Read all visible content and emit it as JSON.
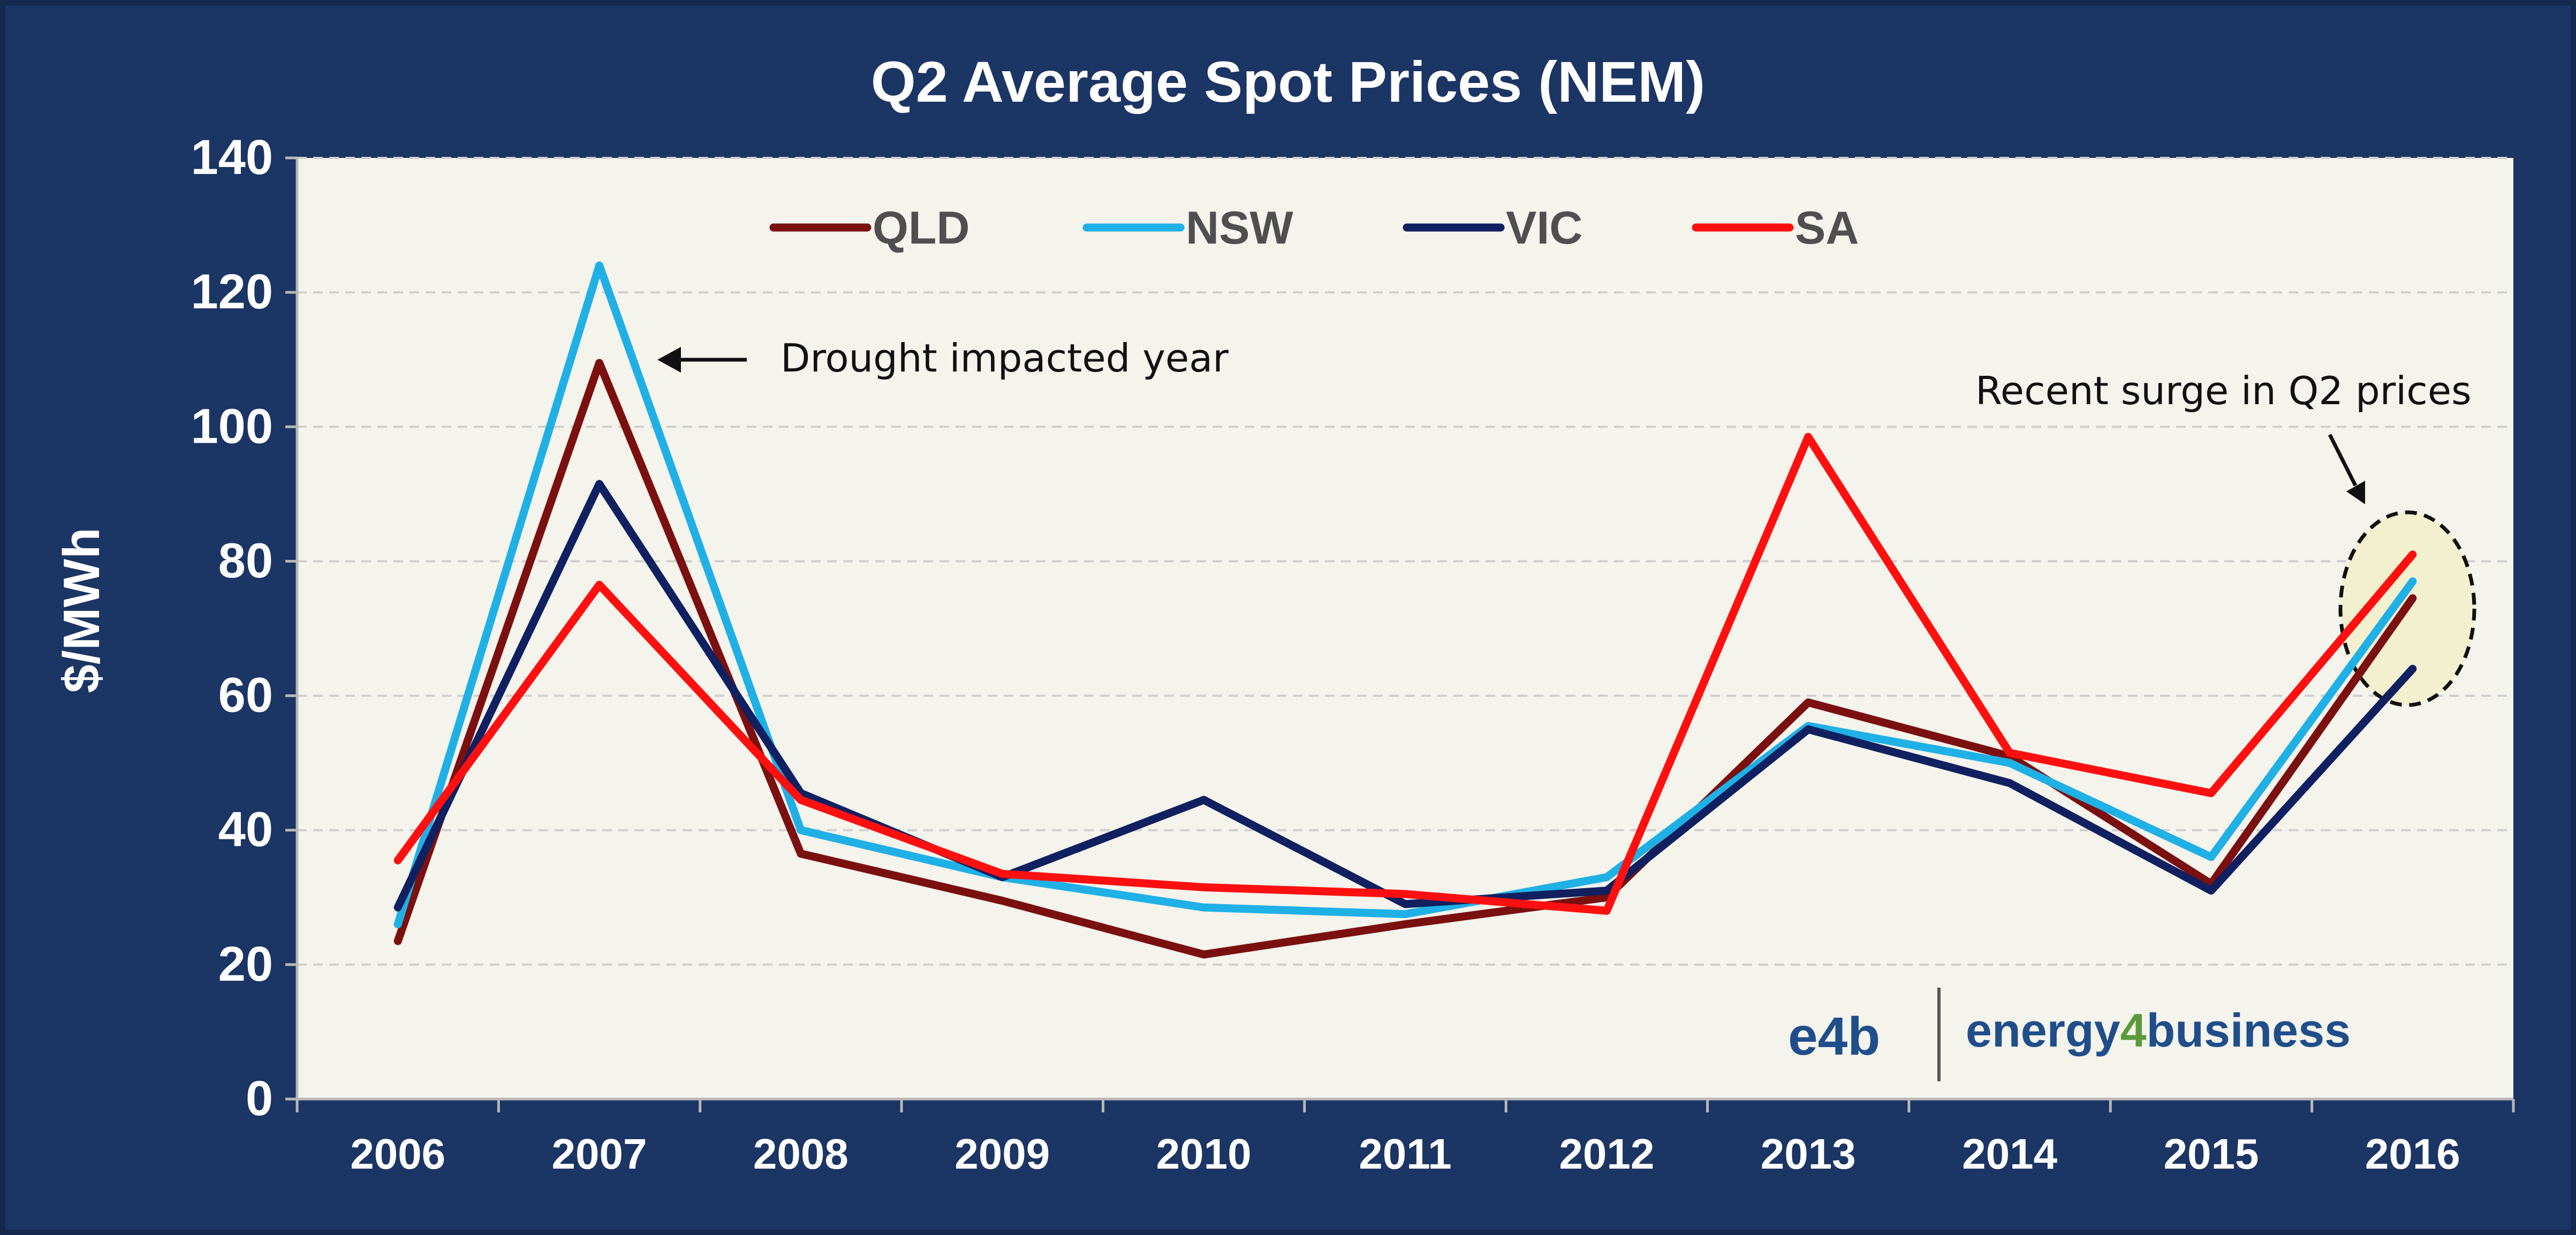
{
  "chart_data": {
    "type": "line",
    "title": "Q2 Average Spot Prices (NEM)",
    "xlabel": "",
    "ylabel": "$/MWh",
    "ylim": [
      0,
      140
    ],
    "yticks": [
      "0",
      "20",
      "40",
      "60",
      "80",
      "100",
      "120",
      "140"
    ],
    "grid": true,
    "legend_placement": "top",
    "categories": [
      "2006",
      "2007",
      "2008",
      "2009",
      "2010",
      "2011",
      "2012",
      "2013",
      "2014",
      "2015",
      "2016"
    ],
    "series": [
      {
        "name": "QLD",
        "color": "#7b1010",
        "values": [
          23.5,
          109.5,
          36.5,
          29.5,
          21.5,
          26,
          30,
          59,
          51,
          32,
          74.5
        ]
      },
      {
        "name": "NSW",
        "color": "#1fb0e6",
        "values": [
          26,
          124,
          40,
          33,
          28.5,
          27.5,
          33,
          55.5,
          50,
          36,
          77
        ]
      },
      {
        "name": "VIC",
        "color": "#102060",
        "values": [
          28.5,
          91.5,
          45.5,
          33,
          44.5,
          29,
          31,
          55,
          47,
          31,
          64
        ]
      },
      {
        "name": "SA",
        "color": "#ff1010",
        "values": [
          35.5,
          76.5,
          44.5,
          33.5,
          31.5,
          30.5,
          28,
          98.5,
          51.5,
          45.5,
          81
        ]
      }
    ],
    "annotations": [
      {
        "text": "Drought impacted year",
        "category": "2007",
        "value": 110
      },
      {
        "text": "Recent surge in Q2 prices",
        "category": "2016",
        "value": 75
      }
    ]
  },
  "logo": {
    "short": "e4b",
    "name_part1": "energy",
    "name_digit": "4",
    "name_part2": "business",
    "brand_color": "#1f4e8a",
    "accent_color": "#5b9a3a"
  },
  "colors": {
    "frame": "#1b3564",
    "plot_background": "#f4f3ec",
    "highlight_fill": "#f3f0cf"
  }
}
